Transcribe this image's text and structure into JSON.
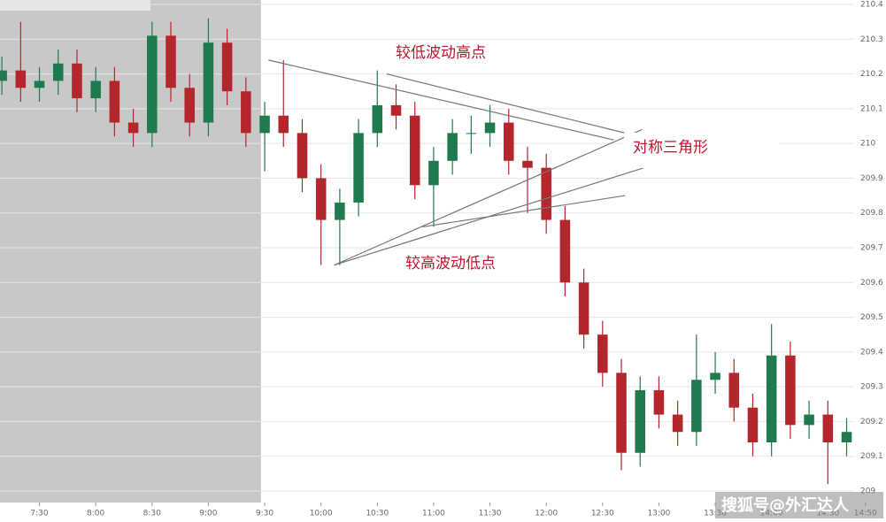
{
  "chart_data": {
    "type": "candlestick",
    "x": [
      "7:10",
      "7:20",
      "7:30",
      "7:40",
      "7:50",
      "8:00",
      "8:10",
      "8:20",
      "8:30",
      "8:40",
      "8:50",
      "9:00",
      "9:10",
      "9:20",
      "9:30",
      "9:40",
      "9:50",
      "10:00",
      "10:10",
      "10:20",
      "10:30",
      "10:40",
      "10:50",
      "11:00",
      "11:10",
      "11:20",
      "11:30",
      "11:40",
      "11:50",
      "12:00",
      "12:10",
      "12:20",
      "12:30",
      "12:40",
      "12:50",
      "13:00",
      "13:10",
      "13:20",
      "13:30",
      "13:40",
      "13:50",
      "14:00",
      "14:10",
      "14:20",
      "14:30",
      "14:40"
    ],
    "open": [
      210.18,
      210.21,
      210.16,
      210.18,
      210.23,
      210.13,
      210.18,
      210.06,
      210.03,
      210.31,
      210.16,
      210.06,
      210.29,
      210.15,
      210.03,
      210.08,
      210.03,
      209.9,
      209.78,
      209.83,
      210.03,
      210.11,
      210.08,
      209.88,
      209.95,
      210.03,
      210.03,
      210.06,
      209.95,
      209.93,
      209.78,
      209.6,
      209.45,
      209.34,
      209.11,
      209.29,
      209.22,
      209.17,
      209.32,
      209.34,
      209.24,
      209.14,
      209.39,
      209.19,
      209.22,
      209.14
    ],
    "high": [
      210.25,
      210.35,
      210.22,
      210.27,
      210.27,
      210.22,
      210.22,
      210.1,
      210.35,
      210.35,
      210.2,
      210.36,
      210.33,
      210.19,
      210.12,
      210.24,
      210.07,
      209.94,
      209.87,
      210.07,
      210.21,
      210.17,
      210.12,
      209.99,
      210.07,
      210.08,
      210.11,
      210.1,
      209.99,
      209.97,
      209.82,
      209.64,
      209.49,
      209.38,
      209.33,
      209.33,
      209.26,
      209.45,
      209.4,
      209.38,
      209.28,
      209.48,
      209.43,
      209.26,
      209.26,
      209.21
    ],
    "low": [
      210.14,
      210.12,
      210.12,
      210.14,
      210.09,
      210.09,
      210.02,
      209.99,
      209.99,
      210.12,
      210.02,
      210.02,
      210.11,
      209.99,
      209.92,
      209.99,
      209.86,
      209.65,
      209.65,
      209.79,
      209.99,
      210.04,
      209.84,
      209.76,
      209.91,
      209.97,
      209.99,
      209.91,
      209.8,
      209.74,
      209.56,
      209.41,
      209.3,
      209.06,
      209.07,
      209.18,
      209.13,
      209.13,
      209.28,
      209.2,
      209.1,
      209.1,
      209.15,
      209.15,
      209.02,
      209.1
    ],
    "close": [
      210.21,
      210.16,
      210.18,
      210.23,
      210.13,
      210.18,
      210.06,
      210.03,
      210.31,
      210.16,
      210.06,
      210.29,
      210.15,
      210.03,
      210.08,
      210.03,
      209.9,
      209.78,
      209.83,
      210.03,
      210.11,
      210.08,
      209.88,
      209.95,
      210.03,
      210.03,
      210.06,
      209.95,
      209.93,
      209.78,
      209.6,
      209.45,
      209.34,
      209.11,
      209.29,
      209.22,
      209.17,
      209.32,
      209.34,
      209.24,
      209.14,
      209.39,
      209.19,
      209.22,
      209.14,
      209.17
    ],
    "up_color": "#1f7a4d",
    "down_color": "#b3262c",
    "xlim": [
      "7:09",
      "14:44"
    ],
    "xticks": [
      "7:30",
      "8:00",
      "8:30",
      "9:00",
      "9:30",
      "10:00",
      "10:30",
      "11:00",
      "11:30",
      "12:00",
      "12:30",
      "13:00",
      "13:30",
      "14:00",
      "14:30",
      "14:50"
    ],
    "ylim": [
      209,
      210.4
    ],
    "yticks": [
      209,
      209.1,
      209.2,
      209.3,
      209.4,
      209.5,
      209.6,
      209.7,
      209.8,
      209.9,
      210,
      210.1,
      210.2,
      210.3,
      210.4
    ],
    "grid": true,
    "shade_until": "9:28",
    "trendlines": [
      {
        "x": [
          "9:32",
          "12:36"
        ],
        "y": [
          210.24,
          210.01
        ]
      },
      {
        "x": [
          "10:35",
          "12:42"
        ],
        "y": [
          210.2,
          210.03
        ]
      },
      {
        "x": [
          "10:07",
          "12:51"
        ],
        "y": [
          209.65,
          210.04
        ]
      },
      {
        "x": [
          "10:07",
          "12:52"
        ],
        "y": [
          209.65,
          209.93
        ]
      },
      {
        "x": [
          "10:54",
          "12:42"
        ],
        "y": [
          209.76,
          209.85
        ]
      }
    ],
    "annotations": [
      "较低波动高点",
      "对称三角形",
      "较高波动低点"
    ],
    "watermark": "搜狐号@外汇达人"
  }
}
